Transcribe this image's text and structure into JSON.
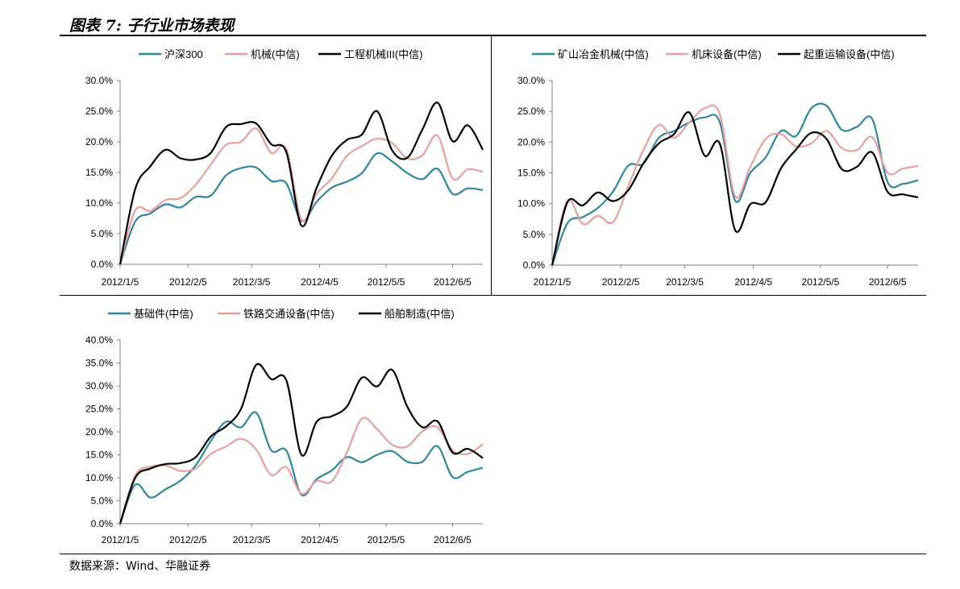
{
  "title": "图表 7: 子行业市场表现",
  "source": "数据来源：Wind、华融证券",
  "colors": {
    "teal": "#31859c",
    "pink": "#e6a09e",
    "black": "#000000",
    "axis": "#7f7f7f"
  },
  "chart_data": [
    {
      "type": "line",
      "ylim": [
        0,
        0.3
      ],
      "yticks": [
        "0.0%",
        "5.0%",
        "10.0%",
        "15.0%",
        "20.0%",
        "25.0%",
        "30.0%"
      ],
      "x_ticks": [
        "2012/1/5",
        "2012/2/5",
        "2012/3/5",
        "2012/4/5",
        "2012/5/5",
        "2012/6/5"
      ],
      "legend_position": "top",
      "series": [
        {
          "name": "沪深300",
          "color": "#31859c",
          "values": [
            0,
            0.07,
            0.083,
            0.098,
            0.093,
            0.11,
            0.112,
            0.145,
            0.157,
            0.158,
            0.136,
            0.132,
            0.071,
            0.102,
            0.125,
            0.135,
            0.149,
            0.181,
            0.168,
            0.149,
            0.139,
            0.156,
            0.115,
            0.124,
            0.121
          ]
        },
        {
          "name": "机械(中信)",
          "color": "#e6a09e",
          "values": [
            0,
            0.088,
            0.087,
            0.105,
            0.108,
            0.13,
            0.163,
            0.195,
            0.2,
            0.222,
            0.182,
            0.188,
            0.073,
            0.115,
            0.14,
            0.177,
            0.193,
            0.205,
            0.198,
            0.173,
            0.178,
            0.21,
            0.14,
            0.155,
            0.151
          ]
        },
        {
          "name": "工程机械III(中信)",
          "color": "#000000",
          "values": [
            0,
            0.123,
            0.16,
            0.187,
            0.173,
            0.171,
            0.182,
            0.224,
            0.229,
            0.23,
            0.196,
            0.183,
            0.063,
            0.125,
            0.177,
            0.203,
            0.212,
            0.25,
            0.186,
            0.174,
            0.22,
            0.264,
            0.201,
            0.227,
            0.187
          ]
        }
      ]
    },
    {
      "type": "line",
      "ylim": [
        0,
        0.3
      ],
      "yticks": [
        "0.0%",
        "5.0%",
        "10.0%",
        "15.0%",
        "20.0%",
        "25.0%",
        "30.0%"
      ],
      "x_ticks": [
        "2012/1/5",
        "2012/2/5",
        "2012/3/5",
        "2012/4/5",
        "2012/5/5",
        "2012/6/5"
      ],
      "legend_position": "top",
      "series": [
        {
          "name": "矿山冶金机械(中信)",
          "color": "#31859c",
          "values": [
            0,
            0.068,
            0.078,
            0.093,
            0.12,
            0.162,
            0.165,
            0.207,
            0.218,
            0.232,
            0.24,
            0.232,
            0.105,
            0.15,
            0.175,
            0.218,
            0.21,
            0.255,
            0.259,
            0.22,
            0.225,
            0.237,
            0.135,
            0.132,
            0.138
          ]
        },
        {
          "name": "机床设备(中信)",
          "color": "#e6a09e",
          "values": [
            0,
            0.105,
            0.067,
            0.08,
            0.07,
            0.129,
            0.188,
            0.228,
            0.207,
            0.232,
            0.255,
            0.245,
            0.112,
            0.16,
            0.205,
            0.213,
            0.193,
            0.198,
            0.218,
            0.19,
            0.187,
            0.208,
            0.15,
            0.157,
            0.161
          ]
        },
        {
          "name": "起重运输设备(中信)",
          "color": "#000000",
          "values": [
            0,
            0.102,
            0.097,
            0.118,
            0.104,
            0.122,
            0.166,
            0.198,
            0.213,
            0.248,
            0.178,
            0.197,
            0.057,
            0.099,
            0.102,
            0.157,
            0.188,
            0.215,
            0.205,
            0.156,
            0.16,
            0.183,
            0.119,
            0.115,
            0.11
          ]
        }
      ]
    },
    {
      "type": "line",
      "ylim": [
        0,
        0.4
      ],
      "yticks": [
        "0.0%",
        "5.0%",
        "10.0%",
        "15.0%",
        "20.0%",
        "25.0%",
        "30.0%",
        "35.0%",
        "40.0%"
      ],
      "x_ticks": [
        "2012/1/5",
        "2012/2/5",
        "2012/3/5",
        "2012/4/5",
        "2012/5/5",
        "2012/6/5"
      ],
      "legend_position": "top",
      "series": [
        {
          "name": "基础件(中信)",
          "color": "#31859c",
          "values": [
            0,
            0.085,
            0.057,
            0.075,
            0.094,
            0.127,
            0.18,
            0.222,
            0.21,
            0.242,
            0.16,
            0.159,
            0.063,
            0.097,
            0.116,
            0.145,
            0.134,
            0.15,
            0.158,
            0.135,
            0.135,
            0.169,
            0.102,
            0.113,
            0.122
          ]
        },
        {
          "name": "铁路交通设备(中信)",
          "color": "#e6a09e",
          "values": [
            0,
            0.105,
            0.124,
            0.127,
            0.115,
            0.12,
            0.152,
            0.168,
            0.185,
            0.162,
            0.106,
            0.123,
            0.065,
            0.093,
            0.092,
            0.155,
            0.229,
            0.206,
            0.172,
            0.168,
            0.201,
            0.21,
            0.16,
            0.152,
            0.173
          ]
        },
        {
          "name": "船舶制造(中信)",
          "color": "#000000",
          "values": [
            0,
            0.1,
            0.12,
            0.13,
            0.132,
            0.145,
            0.19,
            0.212,
            0.25,
            0.346,
            0.315,
            0.312,
            0.15,
            0.222,
            0.234,
            0.255,
            0.318,
            0.299,
            0.335,
            0.255,
            0.21,
            0.223,
            0.155,
            0.163,
            0.143
          ]
        }
      ]
    }
  ]
}
